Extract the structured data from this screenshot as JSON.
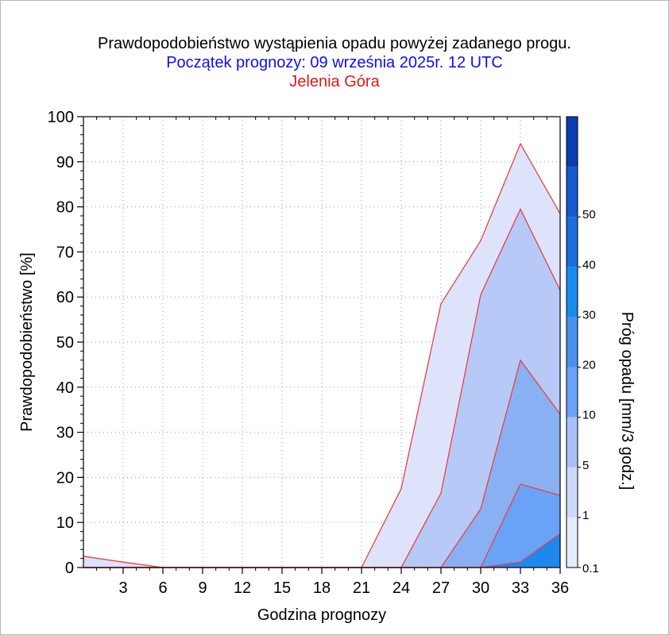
{
  "title": {
    "line1": "Prawdopodobieństwo wystąpienia opadu powyżej zadanego progu.",
    "line2": "Początek prognozy: 09 września 2025r. 12 UTC",
    "line3": "Jelenia Góra",
    "line1_color": "#000000",
    "line2_color": "#1010e0",
    "line3_color": "#e01818"
  },
  "chart_data": {
    "type": "area",
    "xlabel": "Godzina prognozy",
    "ylabel": "Prawdopodobieństwo [%]",
    "colorbar_label": "Próg opadu [mm/3 godz.]",
    "xlim": [
      0,
      36
    ],
    "ylim": [
      0,
      100
    ],
    "x": [
      0,
      3,
      6,
      9,
      12,
      15,
      18,
      21,
      24,
      27,
      30,
      33,
      36
    ],
    "x_tick_labels": [
      "3",
      "6",
      "9",
      "12",
      "15",
      "18",
      "21",
      "24",
      "27",
      "30",
      "33",
      "36"
    ],
    "y_tick_labels": [
      "0",
      "10",
      "20",
      "30",
      "40",
      "50",
      "60",
      "70",
      "80",
      "90",
      "100"
    ],
    "outline_color": "#e8404a",
    "series": [
      {
        "name": "0.1",
        "color": "#dde3fb",
        "values": [
          2.5,
          1.2,
          0,
          0,
          0,
          0,
          0,
          0,
          17.5,
          58.5,
          72.5,
          94,
          78.5
        ]
      },
      {
        "name": "1",
        "color": "#b6c9f7",
        "values": [
          0,
          0,
          0,
          0,
          0,
          0,
          0,
          0,
          0,
          16.5,
          60.5,
          79.5,
          61.5
        ]
      },
      {
        "name": "5",
        "color": "#8ab0f4",
        "values": [
          0,
          0,
          0,
          0,
          0,
          0,
          0,
          0,
          0,
          0,
          13,
          46,
          34
        ]
      },
      {
        "name": "10",
        "color": "#6aa2f8",
        "values": [
          0,
          0,
          0,
          0,
          0,
          0,
          0,
          0,
          0,
          0,
          0,
          18.5,
          16
        ]
      },
      {
        "name": "20",
        "color": "#1e88ee",
        "values": [
          0,
          0,
          0,
          0,
          0,
          0,
          0,
          0,
          0,
          0,
          0,
          1.2,
          7.5
        ]
      }
    ],
    "colorbar": {
      "labels": [
        "0.1",
        "1",
        "5",
        "10",
        "20",
        "30",
        "40",
        "50"
      ],
      "bands": [
        {
          "color": "#e6ebfd"
        },
        {
          "color": "#cdd9fa"
        },
        {
          "color": "#a8c0f6"
        },
        {
          "color": "#6aa2f8"
        },
        {
          "color": "#4a90ee"
        },
        {
          "color": "#1a8cf0"
        },
        {
          "color": "#1a6ee0"
        },
        {
          "color": "#1559cf"
        },
        {
          "color": "#0a3fb0"
        }
      ]
    }
  }
}
